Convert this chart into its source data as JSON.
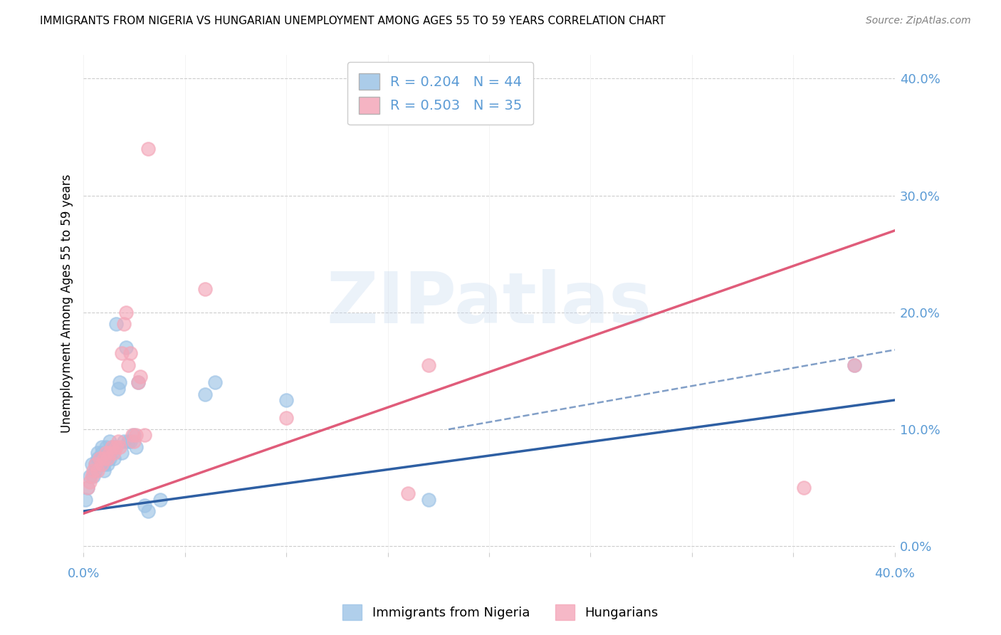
{
  "title": "IMMIGRANTS FROM NIGERIA VS HUNGARIAN UNEMPLOYMENT AMONG AGES 55 TO 59 YEARS CORRELATION CHART",
  "source": "Source: ZipAtlas.com",
  "ylabel": "Unemployment Among Ages 55 to 59 years",
  "xlim": [
    0.0,
    0.4
  ],
  "ylim": [
    -0.005,
    0.42
  ],
  "yticks": [
    0.0,
    0.1,
    0.2,
    0.3,
    0.4
  ],
  "xticks": [
    0.0,
    0.05,
    0.1,
    0.15,
    0.2,
    0.25,
    0.3,
    0.35,
    0.4
  ],
  "title_fontsize": 11,
  "axis_color": "#5b9bd5",
  "nigeria_color": "#9dc3e6",
  "hungarian_color": "#f4a7b9",
  "nigeria_line_color": "#2e5fa3",
  "hungarian_line_color": "#e05c7a",
  "legend_nigeria_R": "0.204",
  "legend_nigeria_N": "44",
  "legend_hungarian_R": "0.503",
  "legend_hungarian_N": "35",
  "watermark": "ZIPatlas",
  "nigeria_line_x0": 0.0,
  "nigeria_line_y0": 0.03,
  "nigeria_line_x1": 0.4,
  "nigeria_line_y1": 0.125,
  "hungarian_line_x0": 0.0,
  "hungarian_line_y0": 0.028,
  "hungarian_line_x1": 0.4,
  "hungarian_line_y1": 0.27,
  "dash_line_x0": 0.18,
  "dash_line_y0": 0.1,
  "dash_line_x1": 0.4,
  "dash_line_y1": 0.168,
  "nigeria_scatter_x": [
    0.001,
    0.002,
    0.003,
    0.004,
    0.005,
    0.006,
    0.006,
    0.007,
    0.007,
    0.008,
    0.008,
    0.009,
    0.009,
    0.01,
    0.01,
    0.01,
    0.011,
    0.011,
    0.012,
    0.012,
    0.013,
    0.013,
    0.014,
    0.015,
    0.015,
    0.016,
    0.017,
    0.018,
    0.019,
    0.02,
    0.021,
    0.022,
    0.023,
    0.025,
    0.026,
    0.027,
    0.03,
    0.032,
    0.038,
    0.06,
    0.065,
    0.1,
    0.17,
    0.38
  ],
  "nigeria_scatter_y": [
    0.04,
    0.05,
    0.06,
    0.07,
    0.06,
    0.065,
    0.07,
    0.075,
    0.08,
    0.07,
    0.075,
    0.08,
    0.085,
    0.065,
    0.07,
    0.075,
    0.08,
    0.085,
    0.07,
    0.08,
    0.075,
    0.09,
    0.085,
    0.075,
    0.085,
    0.19,
    0.135,
    0.14,
    0.08,
    0.09,
    0.17,
    0.09,
    0.09,
    0.095,
    0.085,
    0.14,
    0.035,
    0.03,
    0.04,
    0.13,
    0.14,
    0.125,
    0.04,
    0.155
  ],
  "hungarian_scatter_x": [
    0.002,
    0.003,
    0.004,
    0.005,
    0.006,
    0.007,
    0.008,
    0.009,
    0.01,
    0.011,
    0.012,
    0.013,
    0.014,
    0.015,
    0.016,
    0.017,
    0.018,
    0.019,
    0.02,
    0.021,
    0.022,
    0.023,
    0.024,
    0.025,
    0.026,
    0.027,
    0.028,
    0.03,
    0.032,
    0.06,
    0.1,
    0.16,
    0.17,
    0.355,
    0.38
  ],
  "hungarian_scatter_y": [
    0.05,
    0.055,
    0.06,
    0.065,
    0.07,
    0.065,
    0.075,
    0.07,
    0.075,
    0.08,
    0.075,
    0.08,
    0.085,
    0.08,
    0.085,
    0.09,
    0.085,
    0.165,
    0.19,
    0.2,
    0.155,
    0.165,
    0.095,
    0.09,
    0.095,
    0.14,
    0.145,
    0.095,
    0.34,
    0.22,
    0.11,
    0.045,
    0.155,
    0.05,
    0.155
  ]
}
